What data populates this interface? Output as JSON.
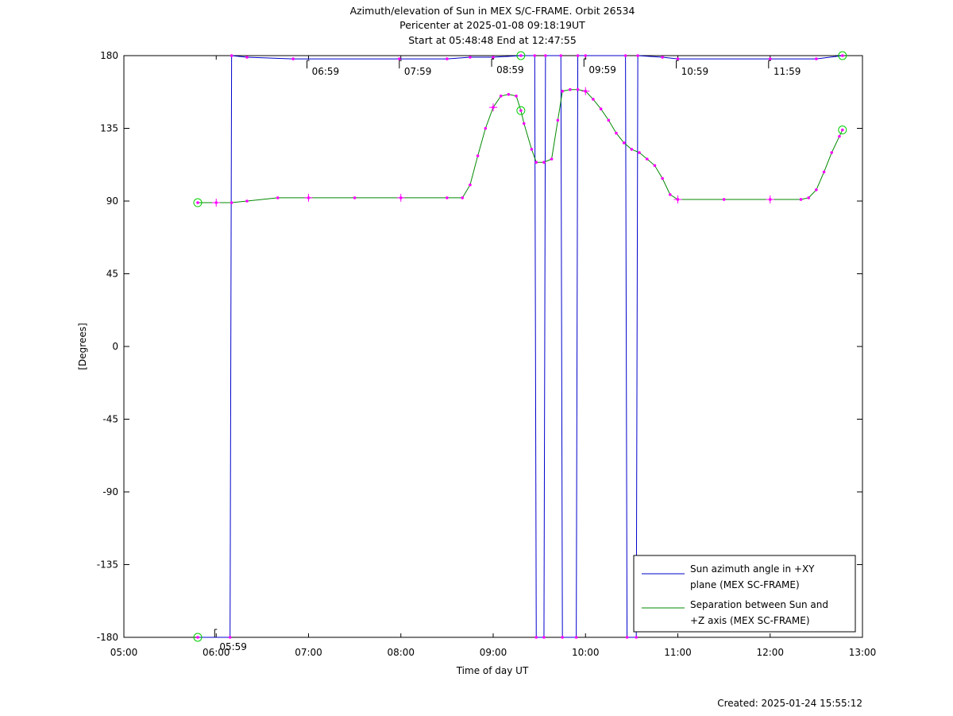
{
  "chart_data": {
    "type": "line",
    "title_lines": [
      "Azimuth/elevation of Sun in MEX S/C-FRAME.  Orbit 26534",
      "Pericenter at 2025-01-08 09:18:19UT",
      "Start at 05:48:48 End at 12:47:55"
    ],
    "xlabel": "Time of day UT",
    "ylabel": "[Degrees]",
    "xlim": [
      "05:00",
      "13:00"
    ],
    "ylim": [
      -180,
      180
    ],
    "x_ticks": [
      "05:00",
      "06:00",
      "07:00",
      "08:00",
      "09:00",
      "10:00",
      "11:00",
      "12:00",
      "13:00"
    ],
    "y_ticks": [
      "180",
      "135",
      "90",
      "45",
      "0",
      "-45",
      "-90",
      "-135",
      "-180"
    ],
    "grid": false,
    "legend_position": "bottom-right",
    "created": "Created: 2025-01-24 15:55:12",
    "time_labels": [
      {
        "x": "05:59",
        "y": -180,
        "text": "05:59"
      },
      {
        "x": "06:59",
        "y": 178,
        "text": "06:59"
      },
      {
        "x": "07:59",
        "y": 178,
        "text": "07:59"
      },
      {
        "x": "08:59",
        "y": 179,
        "text": "08:59"
      },
      {
        "x": "09:59",
        "y": 179,
        "text": "09:59"
      },
      {
        "x": "10:59",
        "y": 178,
        "text": "10:59"
      },
      {
        "x": "11:59",
        "y": 178,
        "text": "11:59"
      }
    ],
    "series": [
      {
        "name": "Sun azimuth angle in +XY plane (MEX SC-FRAME)",
        "legend_lines": [
          "Sun azimuth angle in +XY",
          "plane (MEX SC-FRAME)"
        ],
        "color": "#0000cc",
        "segments": [
          [
            [
              "05:48",
              "-180"
            ],
            [
              "06:09",
              "-180"
            ]
          ],
          [
            [
              "06:10",
              "180"
            ],
            [
              "06:20",
              "179"
            ],
            [
              "06:50",
              "178"
            ],
            [
              "07:59",
              "178"
            ],
            [
              "08:30",
              "178"
            ],
            [
              "08:45",
              "179"
            ],
            [
              "09:00",
              "179"
            ],
            [
              "09:18",
              "180"
            ],
            [
              "09:27",
              "180"
            ]
          ],
          [
            [
              "09:28",
              "-180"
            ],
            [
              "09:33",
              "-180"
            ]
          ],
          [
            [
              "09:34",
              "180"
            ],
            [
              "09:44",
              "180"
            ]
          ],
          [
            [
              "09:45",
              "-180"
            ],
            [
              "09:54",
              "-180"
            ]
          ],
          [
            [
              "09:55",
              "180"
            ],
            [
              "10:00",
              "180"
            ],
            [
              "10:26",
              "180"
            ]
          ],
          [
            [
              "10:27",
              "-180"
            ],
            [
              "10:33",
              "-180"
            ]
          ],
          [
            [
              "10:34",
              "180"
            ],
            [
              "10:50",
              "179"
            ],
            [
              "11:00",
              "178"
            ],
            [
              "12:00",
              "178"
            ],
            [
              "12:30",
              "178"
            ],
            [
              "12:47",
              "180"
            ]
          ]
        ]
      },
      {
        "name": "Separation between Sun and +Z axis (MEX SC-FRAME)",
        "legend_lines": [
          "Separation between Sun and",
          "+Z axis (MEX SC-FRAME)"
        ],
        "color": "#008800",
        "points": [
          [
            "05:48",
            89
          ],
          [
            "06:00",
            89
          ],
          [
            "06:10",
            89
          ],
          [
            "06:20",
            90
          ],
          [
            "06:40",
            92
          ],
          [
            "07:00",
            92
          ],
          [
            "07:30",
            92
          ],
          [
            "08:00",
            92
          ],
          [
            "08:30",
            92
          ],
          [
            "08:40",
            92
          ],
          [
            "08:45",
            100
          ],
          [
            "08:50",
            118
          ],
          [
            "08:55",
            135
          ],
          [
            "09:00",
            148
          ],
          [
            "09:05",
            155
          ],
          [
            "09:10",
            156
          ],
          [
            "09:15",
            155
          ],
          [
            "09:18",
            146
          ],
          [
            "09:20",
            138
          ],
          [
            "09:25",
            122
          ],
          [
            "09:28",
            114
          ],
          [
            "09:33",
            114
          ],
          [
            "09:38",
            116
          ],
          [
            "09:42",
            140
          ],
          [
            "09:45",
            158
          ],
          [
            "09:50",
            159
          ],
          [
            "09:55",
            159
          ],
          [
            "10:00",
            158
          ],
          [
            "10:05",
            153
          ],
          [
            "10:10",
            147
          ],
          [
            "10:15",
            140
          ],
          [
            "10:20",
            132
          ],
          [
            "10:25",
            126
          ],
          [
            "10:30",
            122
          ],
          [
            "10:35",
            120
          ],
          [
            "10:40",
            116
          ],
          [
            "10:45",
            112
          ],
          [
            "10:50",
            104
          ],
          [
            "10:55",
            94
          ],
          [
            "11:00",
            91
          ],
          [
            "11:30",
            91
          ],
          [
            "12:00",
            91
          ],
          [
            "12:20",
            91
          ],
          [
            "12:25",
            92
          ],
          [
            "12:30",
            97
          ],
          [
            "12:35",
            108
          ],
          [
            "12:40",
            120
          ],
          [
            "12:45",
            130
          ],
          [
            "12:47",
            134
          ]
        ]
      }
    ],
    "markers": {
      "dot_color": "#ff00ff",
      "circle_color": "#00cc00",
      "circles": [
        [
          "05:48",
          "89"
        ],
        [
          "05:48",
          "-180"
        ],
        [
          "09:18",
          "180"
        ],
        [
          "09:18",
          "146"
        ],
        [
          "12:47",
          "180"
        ],
        [
          "12:47",
          "134"
        ]
      ]
    }
  }
}
